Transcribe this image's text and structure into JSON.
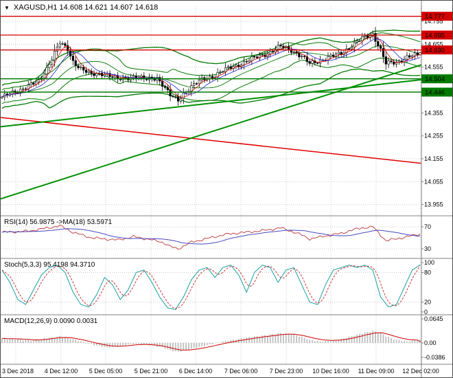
{
  "title": {
    "dropdown_icon": "▼",
    "text": "XAGUSD,H1  14.608 14.621 14.607 14.618"
  },
  "panels": {
    "rsi_label": "RSI(14) 56.9875  ->MA(18) 53.5971",
    "stoch_label": "Stoch(5,3,3) 95.4198 94.3710",
    "macd_label": "MACD(12,26,9) 0.0090 0.0031"
  },
  "colors": {
    "resistance": "#d40000",
    "support": "#007a00",
    "bands": "#007a00",
    "trend_up": "#009000",
    "trend_down": "#e00000",
    "candle_up": "#ffffff",
    "candle_down": "#000000",
    "candle_border": "#000000",
    "rsi": "#c04848",
    "rsi_ma": "#4848c0",
    "stoch": "#16a0a0",
    "stoch_signal": "#cc3333",
    "macd_hist": "#bdbdbd",
    "macd_signal": "#cc0000",
    "grid": "#c9c9c9",
    "axis": "#808080"
  },
  "price_axis": {
    "ticks": [
      14.755,
      14.655,
      14.555,
      14.455,
      14.355,
      14.255,
      14.155,
      14.055,
      13.955
    ]
  },
  "time_axis": {
    "labels": [
      "3 Dec 2018",
      "4 Dec 12:00",
      "5 Dec 05:00",
      "5 Dec 21:00",
      "6 Dec 14:00",
      "7 Dec 06:00",
      "7 Dec 23:00",
      "10 Dec 16:00",
      "11 Dec 09:00",
      "12 Dec 02:00"
    ]
  },
  "levels": {
    "resistance": [
      14.777,
      14.695,
      14.63
    ],
    "support": [
      14.504,
      14.446
    ]
  },
  "trendlines": [
    {
      "dir": "down",
      "from": [
        0,
        14.335
      ],
      "to": [
        613,
        14.135
      ]
    },
    {
      "dir": "up",
      "from": [
        0,
        13.98
      ],
      "to": [
        613,
        14.565
      ]
    },
    {
      "dir": "up",
      "from": [
        0,
        14.295
      ],
      "to": [
        613,
        14.5
      ]
    }
  ],
  "chart_data": [
    {
      "type": "candlestick",
      "title": "XAGUSD,H1",
      "current_ohlc": {
        "open": 14.608,
        "high": 14.621,
        "low": 14.607,
        "close": 14.618
      },
      "y_range": [
        13.915,
        14.845
      ],
      "wiggle": 0.012,
      "price_path": [
        [
          0,
          14.425
        ],
        [
          5,
          14.445
        ],
        [
          10,
          14.475
        ],
        [
          14,
          14.49
        ],
        [
          17,
          14.55
        ],
        [
          20,
          14.62
        ],
        [
          22,
          14.66
        ],
        [
          25,
          14.63
        ],
        [
          27,
          14.58
        ],
        [
          30,
          14.55
        ],
        [
          34,
          14.52
        ],
        [
          39,
          14.53
        ],
        [
          44,
          14.5
        ],
        [
          50,
          14.515
        ],
        [
          55,
          14.5
        ],
        [
          59,
          14.51
        ],
        [
          61,
          14.48
        ],
        [
          64,
          14.43
        ],
        [
          67,
          14.41
        ],
        [
          69,
          14.44
        ],
        [
          72,
          14.47
        ],
        [
          76,
          14.5
        ],
        [
          81,
          14.52
        ],
        [
          86,
          14.55
        ],
        [
          91,
          14.57
        ],
        [
          97,
          14.6
        ],
        [
          102,
          14.62
        ],
        [
          106,
          14.645
        ],
        [
          110,
          14.63
        ],
        [
          114,
          14.6
        ],
        [
          117,
          14.57
        ],
        [
          121,
          14.585
        ],
        [
          125,
          14.6
        ],
        [
          129,
          14.615
        ],
        [
          133,
          14.65
        ],
        [
          137,
          14.68
        ],
        [
          141,
          14.7
        ],
        [
          144,
          14.63
        ],
        [
          146,
          14.57
        ],
        [
          150,
          14.575
        ],
        [
          154,
          14.6
        ],
        [
          158,
          14.608
        ],
        [
          159,
          14.618
        ]
      ]
    },
    {
      "type": "line",
      "name": "RSI",
      "params": "14",
      "value": 56.9875,
      "ma_value": 53.5971,
      "levels": [
        70,
        30
      ],
      "y_range": [
        15,
        85
      ],
      "path": [
        [
          0,
          60
        ],
        [
          10,
          62
        ],
        [
          20,
          70
        ],
        [
          22,
          72
        ],
        [
          27,
          60
        ],
        [
          34,
          50
        ],
        [
          44,
          46
        ],
        [
          50,
          52
        ],
        [
          55,
          48
        ],
        [
          61,
          42
        ],
        [
          64,
          34
        ],
        [
          67,
          30
        ],
        [
          72,
          42
        ],
        [
          81,
          52
        ],
        [
          86,
          57
        ],
        [
          97,
          62
        ],
        [
          102,
          65
        ],
        [
          106,
          68
        ],
        [
          110,
          62
        ],
        [
          114,
          55
        ],
        [
          117,
          48
        ],
        [
          125,
          55
        ],
        [
          129,
          58
        ],
        [
          133,
          64
        ],
        [
          137,
          68
        ],
        [
          141,
          70
        ],
        [
          144,
          55
        ],
        [
          146,
          45
        ],
        [
          150,
          48
        ],
        [
          154,
          52
        ],
        [
          159,
          56.99
        ]
      ]
    },
    {
      "type": "line",
      "name": "Stochastic",
      "params": "5,3,3",
      "value": 95.4198,
      "signal": 94.371,
      "levels": [
        100,
        80,
        20,
        0
      ],
      "y_range": [
        0,
        100
      ],
      "path": [
        [
          0,
          85
        ],
        [
          3,
          60
        ],
        [
          6,
          25
        ],
        [
          9,
          15
        ],
        [
          12,
          45
        ],
        [
          15,
          75
        ],
        [
          18,
          90
        ],
        [
          21,
          95
        ],
        [
          24,
          80
        ],
        [
          27,
          40
        ],
        [
          30,
          15
        ],
        [
          33,
          10
        ],
        [
          36,
          35
        ],
        [
          39,
          70
        ],
        [
          42,
          55
        ],
        [
          45,
          25
        ],
        [
          48,
          45
        ],
        [
          51,
          80
        ],
        [
          54,
          85
        ],
        [
          57,
          60
        ],
        [
          60,
          30
        ],
        [
          63,
          8
        ],
        [
          66,
          5
        ],
        [
          69,
          30
        ],
        [
          72,
          65
        ],
        [
          75,
          85
        ],
        [
          78,
          90
        ],
        [
          81,
          70
        ],
        [
          84,
          90
        ],
        [
          87,
          95
        ],
        [
          90,
          75
        ],
        [
          93,
          40
        ],
        [
          96,
          80
        ],
        [
          99,
          95
        ],
        [
          102,
          90
        ],
        [
          105,
          60
        ],
        [
          108,
          85
        ],
        [
          111,
          90
        ],
        [
          114,
          55
        ],
        [
          117,
          20
        ],
        [
          120,
          15
        ],
        [
          123,
          55
        ],
        [
          126,
          85
        ],
        [
          129,
          90
        ],
        [
          132,
          95
        ],
        [
          135,
          90
        ],
        [
          138,
          95
        ],
        [
          141,
          85
        ],
        [
          144,
          30
        ],
        [
          147,
          10
        ],
        [
          150,
          15
        ],
        [
          153,
          50
        ],
        [
          156,
          85
        ],
        [
          159,
          95.42
        ]
      ]
    },
    {
      "type": "macd",
      "name": "MACD",
      "params": "12,26,9",
      "value": 0.009,
      "signal": 0.0031,
      "axis_ticks": [
        0.0645,
        0,
        -0.0386
      ],
      "y_range": [
        -0.0425,
        0.0685
      ],
      "path": [
        [
          0,
          0.012
        ],
        [
          6,
          0.01
        ],
        [
          12,
          0.006
        ],
        [
          18,
          0.014
        ],
        [
          22,
          0.018
        ],
        [
          27,
          0.01
        ],
        [
          34,
          -0.004
        ],
        [
          40,
          -0.012
        ],
        [
          44,
          -0.01
        ],
        [
          50,
          -0.002
        ],
        [
          55,
          -0.004
        ],
        [
          61,
          -0.012
        ],
        [
          64,
          -0.02
        ],
        [
          67,
          -0.024
        ],
        [
          72,
          -0.016
        ],
        [
          78,
          -0.006
        ],
        [
          84,
          0.004
        ],
        [
          91,
          0.012
        ],
        [
          97,
          0.018
        ],
        [
          102,
          0.022
        ],
        [
          106,
          0.026
        ],
        [
          110,
          0.024
        ],
        [
          114,
          0.016
        ],
        [
          117,
          0.008
        ],
        [
          121,
          0.004
        ],
        [
          125,
          0.006
        ],
        [
          129,
          0.01
        ],
        [
          133,
          0.018
        ],
        [
          137,
          0.026
        ],
        [
          141,
          0.032
        ],
        [
          144,
          0.028
        ],
        [
          146,
          0.018
        ],
        [
          150,
          0.008
        ],
        [
          154,
          0.004
        ],
        [
          158,
          0.008
        ],
        [
          159,
          0.009
        ]
      ]
    }
  ]
}
